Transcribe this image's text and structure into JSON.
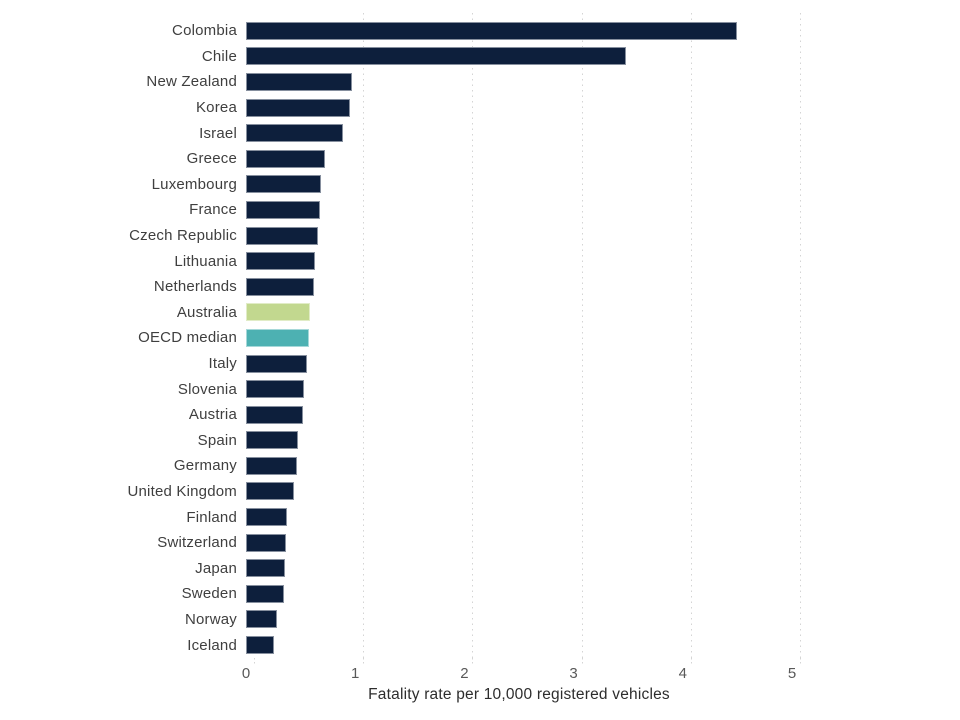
{
  "chart_data": {
    "type": "bar",
    "orientation": "horizontal",
    "title": "",
    "xlabel": "Fatality rate per 10,000 registered vehicles",
    "ylabel": "",
    "xlim": [
      0,
      5
    ],
    "xticks": [
      "0",
      "1",
      "2",
      "3",
      "4",
      "5"
    ],
    "grid": "dotted vertical gridlines at integer ticks",
    "legend_position": "none",
    "categories": [
      "Colombia",
      "Chile",
      "New Zealand",
      "Korea",
      "Israel",
      "Greece",
      "Luxembourg",
      "France",
      "Czech Republic",
      "Lithuania",
      "Netherlands",
      "Australia",
      "OECD median",
      "Italy",
      "Slovenia",
      "Austria",
      "Spain",
      "Germany",
      "United Kingdom",
      "Finland",
      "Switzerland",
      "Japan",
      "Sweden",
      "Norway",
      "Iceland"
    ],
    "values": [
      4.5,
      3.48,
      0.97,
      0.95,
      0.89,
      0.72,
      0.69,
      0.68,
      0.66,
      0.63,
      0.62,
      0.59,
      0.58,
      0.56,
      0.53,
      0.52,
      0.48,
      0.47,
      0.44,
      0.38,
      0.37,
      0.36,
      0.35,
      0.28,
      0.26
    ],
    "bar_color_overrides": {
      "Australia": "#c2d88f",
      "OECD median": "#4db1b2"
    },
    "colors": {
      "bar_default": "#0d1f3c",
      "australia_highlight": "#c2d88f",
      "oecd_median_highlight": "#4db1b2",
      "gridline": "#d4d4d4",
      "category_label": "#3f3f3f",
      "tick_label": "#595959",
      "axis_label": "#2d2d2d",
      "background": "#ffffff"
    }
  }
}
